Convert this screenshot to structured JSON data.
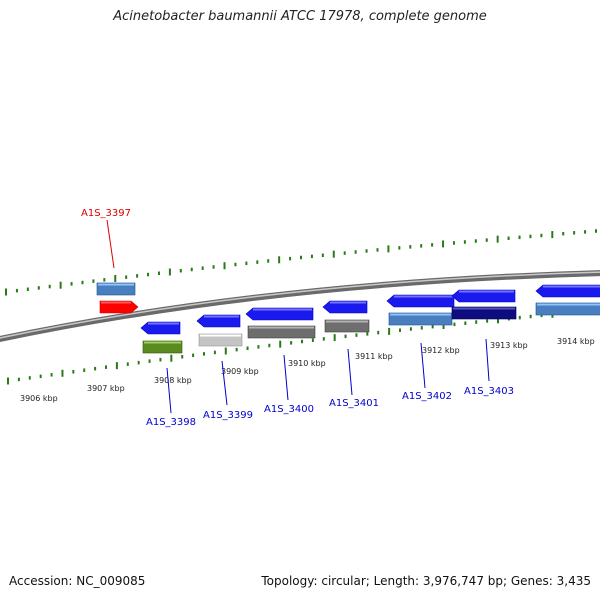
{
  "title": "Acinetobacter baumannii ATCC 17978, complete genome",
  "footer": {
    "accession": "Accession: NC_009085",
    "summary": "Topology: circular; Length: 3,976,747 bp; Genes: 3,435"
  },
  "genome_map": {
    "backbone_color": "#8a8a8a",
    "tick_color": "#2a7a1a",
    "kbp_labels": [
      "3906 kbp",
      "3907 kbp",
      "3908 kbp",
      "3909 kbp",
      "3910 kbp",
      "3911 kbp",
      "3912 kbp",
      "3913 kbp",
      "3914 kbp"
    ],
    "genes": [
      {
        "name": "A1S_3397",
        "label_color": "#dd0000",
        "strand": "plus",
        "color": "#ff0000"
      },
      {
        "name": "A1S_3398",
        "label_color": "#0000cc",
        "strand": "minus",
        "color": "#1a1aee",
        "feature_color": "#5a8a20"
      },
      {
        "name": "A1S_3399",
        "label_color": "#0000cc",
        "strand": "minus",
        "color": "#1a1aee",
        "feature_color": "#c4c4c4"
      },
      {
        "name": "A1S_3400",
        "label_color": "#0000cc",
        "strand": "minus",
        "color": "#1a1aee",
        "feature_color": "#6e6e6e"
      },
      {
        "name": "A1S_3401",
        "label_color": "#0000cc",
        "strand": "minus",
        "color": "#1a1aee",
        "feature_color": "#6e6e6e"
      },
      {
        "name": "A1S_3402",
        "label_color": "#0000cc",
        "strand": "minus",
        "color": "#1a1aee",
        "feature_color": "#4a7fbf"
      },
      {
        "name": "A1S_3403",
        "label_color": "#0000cc",
        "strand": "minus",
        "color": "#1a1aee",
        "feature_color": "#0d0d80"
      }
    ],
    "offscreen_gene_color": "#1a1aee",
    "offscreen_feature_color": "#4a7fbf"
  }
}
